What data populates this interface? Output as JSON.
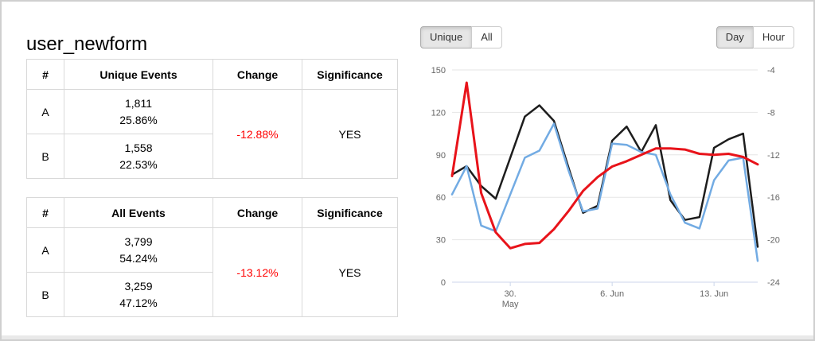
{
  "page": {
    "title": "user_newform"
  },
  "colors": {
    "change_negative_text": "#ff0000",
    "series_a": "#1d1d1d",
    "series_b": "#72abe3",
    "series_change": "#e8131a",
    "active_button_bg": "#e6e6e6",
    "grid_line": "#e6e6e6",
    "axis_line": "#ccd6eb"
  },
  "tables": [
    {
      "headers": [
        "#",
        "Unique Events",
        "Change",
        "Significance"
      ],
      "rows": [
        {
          "label": "A",
          "count": "1,811",
          "percent": "25.86%"
        },
        {
          "label": "B",
          "count": "1,558",
          "percent": "22.53%"
        }
      ],
      "change": "-12.88%",
      "significance": "YES"
    },
    {
      "headers": [
        "#",
        "All Events",
        "Change",
        "Significance"
      ],
      "rows": [
        {
          "label": "A",
          "count": "3,799",
          "percent": "54.24%"
        },
        {
          "label": "B",
          "count": "3,259",
          "percent": "47.12%"
        }
      ],
      "change": "-13.12%",
      "significance": "YES"
    }
  ],
  "controls": {
    "metric_toggle": [
      {
        "label": "Unique",
        "active": true
      },
      {
        "label": "All",
        "active": false
      }
    ],
    "granularity_toggle": [
      {
        "label": "Day",
        "active": true
      },
      {
        "label": "Hour",
        "active": false
      }
    ]
  },
  "chart_data": {
    "type": "line",
    "title": "",
    "grid": true,
    "legend": "none",
    "left_axis": {
      "min": 0,
      "max": 150,
      "ticks": [
        0,
        30,
        60,
        90,
        120,
        150
      ]
    },
    "right_axis": {
      "min": -24,
      "max": -4,
      "ticks": [
        -24,
        -20,
        -16,
        -12,
        -8,
        -4
      ]
    },
    "x_tick_labels": [
      {
        "index": 4,
        "lines": [
          "30.",
          "May"
        ]
      },
      {
        "index": 11,
        "lines": [
          "6. Jun"
        ]
      },
      {
        "index": 18,
        "lines": [
          "13. Jun"
        ]
      }
    ],
    "series": [
      {
        "name": "A",
        "axis": "left",
        "color": "#1d1d1d",
        "width": 2.5,
        "values": [
          76,
          82,
          68,
          59,
          88,
          117,
          125,
          114,
          81,
          49,
          54,
          100,
          110,
          92,
          111,
          58,
          44,
          46,
          95,
          101,
          105,
          25
        ]
      },
      {
        "name": "B",
        "axis": "left",
        "color": "#72abe3",
        "width": 2.5,
        "values": [
          62,
          82,
          40,
          36,
          62,
          88,
          93,
          112,
          79,
          50,
          52,
          98,
          97,
          92,
          90,
          62,
          42,
          38,
          72,
          86,
          88,
          15
        ]
      },
      {
        "name": "Change",
        "axis": "right",
        "color": "#e8131a",
        "width": 3,
        "values": [
          -14.0,
          -5.2,
          -15.6,
          -19.3,
          -20.8,
          -20.4,
          -20.3,
          -19.0,
          -17.3,
          -15.4,
          -14.1,
          -13.1,
          -12.6,
          -12.0,
          -11.4,
          -11.4,
          -11.5,
          -11.9,
          -12.0,
          -11.9,
          -12.2,
          -12.9
        ]
      }
    ]
  }
}
